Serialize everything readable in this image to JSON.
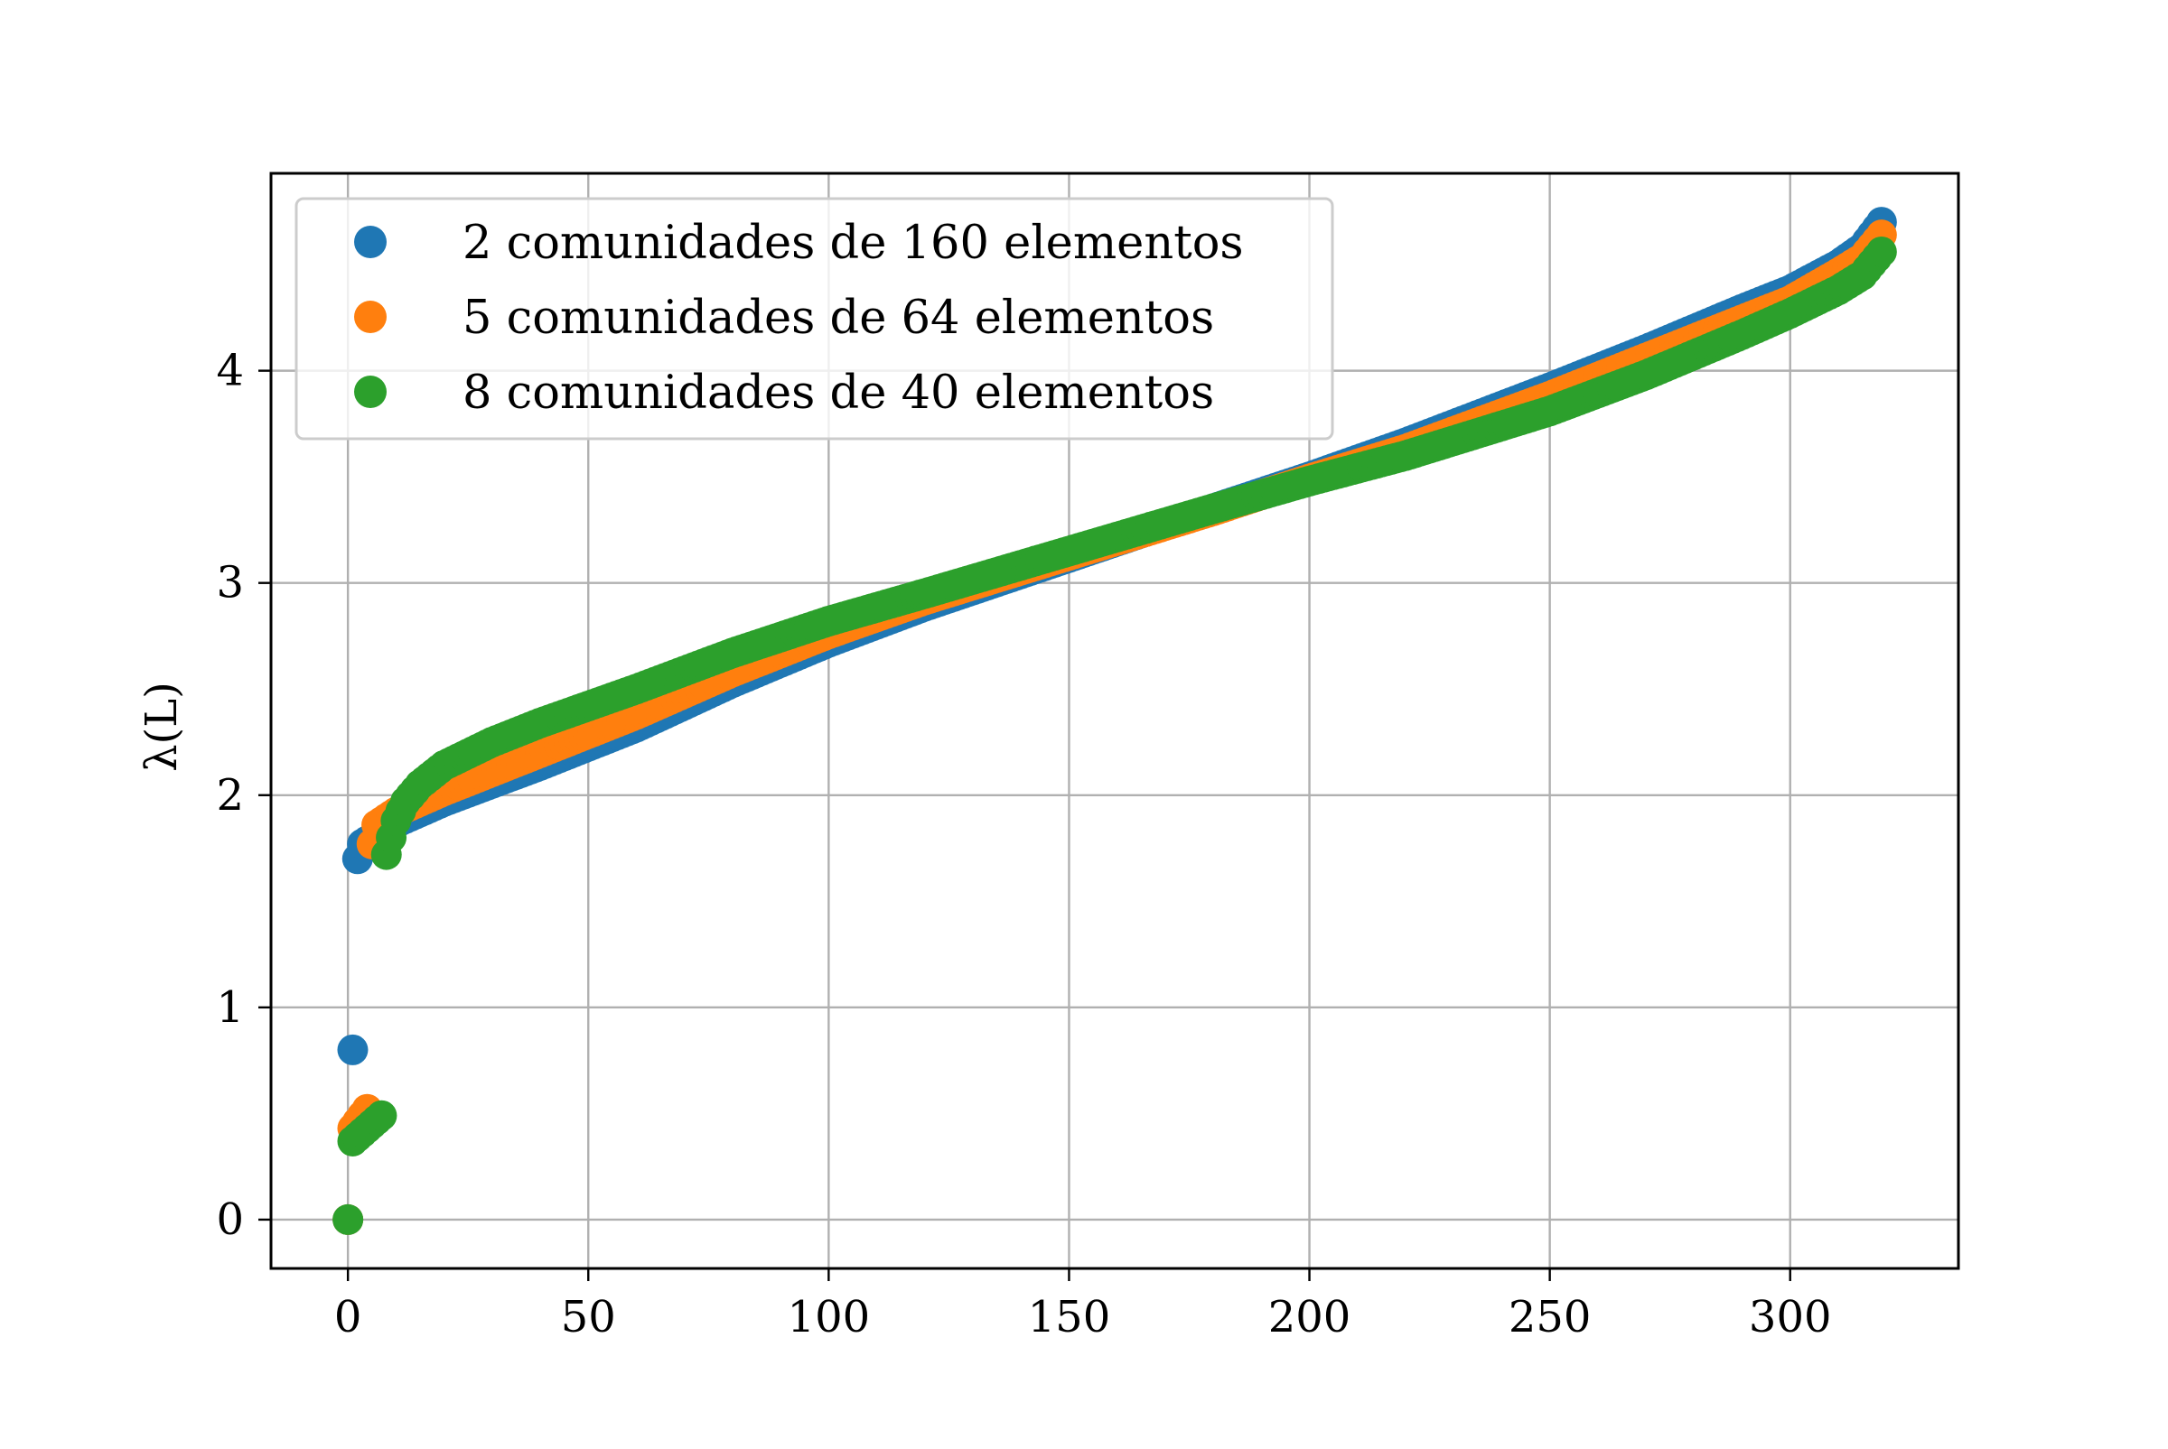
{
  "chart_data": {
    "type": "scatter",
    "title": "",
    "xlabel": "",
    "ylabel": "λ(L)",
    "xlim": [
      -16,
      335
    ],
    "ylim": [
      -0.23,
      4.93
    ],
    "x_ticks": [
      0,
      50,
      100,
      150,
      200,
      250,
      300
    ],
    "y_ticks": [
      0,
      1,
      2,
      3,
      4
    ],
    "grid": true,
    "legend_position": "upper-left",
    "series": [
      {
        "name": "2 comunidades de 160 elementos",
        "color": "#1f77b4",
        "n": 320,
        "points": [
          [
            0,
            0.0
          ],
          [
            1,
            0.8
          ],
          [
            2,
            1.7
          ],
          [
            3,
            1.77
          ],
          [
            10,
            1.87
          ],
          [
            20,
            1.97
          ],
          [
            40,
            2.14
          ],
          [
            60,
            2.32
          ],
          [
            80,
            2.53
          ],
          [
            100,
            2.72
          ],
          [
            120,
            2.89
          ],
          [
            150,
            3.12
          ],
          [
            180,
            3.35
          ],
          [
            200,
            3.5
          ],
          [
            220,
            3.66
          ],
          [
            250,
            3.92
          ],
          [
            270,
            4.1
          ],
          [
            290,
            4.29
          ],
          [
            300,
            4.38
          ],
          [
            310,
            4.5
          ],
          [
            315,
            4.58
          ],
          [
            319,
            4.7
          ]
        ]
      },
      {
        "name": "5 comunidades de 64 elementos",
        "color": "#ff7f0e",
        "n": 320,
        "points": [
          [
            0,
            0.0
          ],
          [
            1,
            0.43
          ],
          [
            2,
            0.46
          ],
          [
            3,
            0.49
          ],
          [
            4,
            0.52
          ],
          [
            5,
            1.77
          ],
          [
            6,
            1.86
          ],
          [
            10,
            1.92
          ],
          [
            20,
            2.02
          ],
          [
            40,
            2.2
          ],
          [
            60,
            2.38
          ],
          [
            80,
            2.58
          ],
          [
            100,
            2.76
          ],
          [
            120,
            2.92
          ],
          [
            150,
            3.13
          ],
          [
            180,
            3.34
          ],
          [
            200,
            3.49
          ],
          [
            220,
            3.63
          ],
          [
            250,
            3.88
          ],
          [
            270,
            4.06
          ],
          [
            290,
            4.24
          ],
          [
            300,
            4.33
          ],
          [
            310,
            4.46
          ],
          [
            315,
            4.53
          ],
          [
            319,
            4.64
          ]
        ]
      },
      {
        "name": "8 comunidades de 40 elementos",
        "color": "#2ca02c",
        "n": 320,
        "points": [
          [
            0,
            0.0
          ],
          [
            1,
            0.37
          ],
          [
            2,
            0.39
          ],
          [
            3,
            0.41
          ],
          [
            4,
            0.43
          ],
          [
            5,
            0.45
          ],
          [
            6,
            0.47
          ],
          [
            7,
            0.49
          ],
          [
            8,
            1.72
          ],
          [
            9,
            1.8
          ],
          [
            10,
            1.88
          ],
          [
            12,
            1.97
          ],
          [
            15,
            2.05
          ],
          [
            20,
            2.14
          ],
          [
            30,
            2.25
          ],
          [
            40,
            2.34
          ],
          [
            60,
            2.5
          ],
          [
            80,
            2.67
          ],
          [
            100,
            2.82
          ],
          [
            120,
            2.95
          ],
          [
            150,
            3.15
          ],
          [
            180,
            3.35
          ],
          [
            200,
            3.48
          ],
          [
            220,
            3.6
          ],
          [
            250,
            3.81
          ],
          [
            270,
            3.98
          ],
          [
            290,
            4.17
          ],
          [
            300,
            4.27
          ],
          [
            310,
            4.38
          ],
          [
            315,
            4.45
          ],
          [
            319,
            4.56
          ]
        ]
      }
    ]
  }
}
